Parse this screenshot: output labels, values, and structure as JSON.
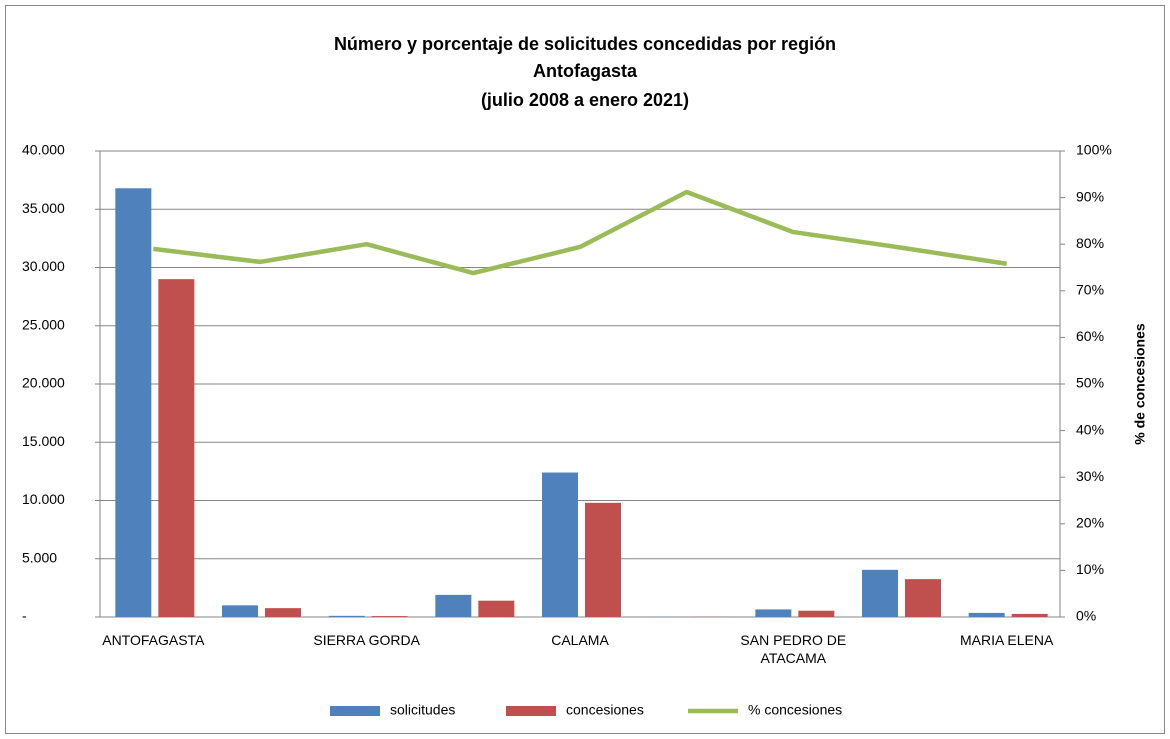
{
  "chart_data": {
    "type": "bar",
    "title": "Número y porcentaje de solicitudes concedidas por región",
    "subtitle": "Antofagasta",
    "period": "(julio 2008 a  enero 2021)",
    "y2_label": "% de concesiones",
    "categories": [
      "ANTOFAGASTA",
      null,
      "SIERRA GORDA",
      null,
      "CALAMA",
      null,
      "SAN PEDRO DE ATACAMA",
      null,
      "MARIA ELENA"
    ],
    "series": [
      {
        "name": "solicitudes",
        "type": "bar",
        "color": "#4f81bd",
        "values": [
          36800,
          1000,
          100,
          1900,
          12400,
          20,
          650,
          4050,
          350
        ]
      },
      {
        "name": "concesiones",
        "type": "bar",
        "color": "#c0504d",
        "values": [
          29000,
          760,
          80,
          1400,
          9800,
          18,
          540,
          3250,
          265
        ]
      },
      {
        "name": "% concesiones",
        "type": "line",
        "axis": "y2",
        "color": "#9bbb59",
        "values": [
          79,
          76.2,
          80,
          73.8,
          79.4,
          91.2,
          82.6,
          79.3,
          75.8
        ]
      }
    ],
    "ylim": [
      0,
      40000
    ],
    "yticks": [
      {
        "value": 0,
        "label": "-"
      },
      {
        "value": 5000,
        "label": "5.000"
      },
      {
        "value": 10000,
        "label": "10.000"
      },
      {
        "value": 15000,
        "label": "15.000"
      },
      {
        "value": 20000,
        "label": "20.000"
      },
      {
        "value": 25000,
        "label": "25.000"
      },
      {
        "value": 30000,
        "label": "30.000"
      },
      {
        "value": 35000,
        "label": "35.000"
      },
      {
        "value": 40000,
        "label": "40.000"
      }
    ],
    "y2lim": [
      0,
      100
    ],
    "y2ticks": [
      {
        "value": 0,
        "label": "0%"
      },
      {
        "value": 10,
        "label": "10%"
      },
      {
        "value": 20,
        "label": "20%"
      },
      {
        "value": 30,
        "label": "30%"
      },
      {
        "value": 40,
        "label": "40%"
      },
      {
        "value": 50,
        "label": "50%"
      },
      {
        "value": 60,
        "label": "60%"
      },
      {
        "value": 70,
        "label": "70%"
      },
      {
        "value": 80,
        "label": "80%"
      },
      {
        "value": 90,
        "label": "90%"
      },
      {
        "value": 100,
        "label": "100%"
      }
    ],
    "grid": true,
    "legend": "bottom"
  }
}
